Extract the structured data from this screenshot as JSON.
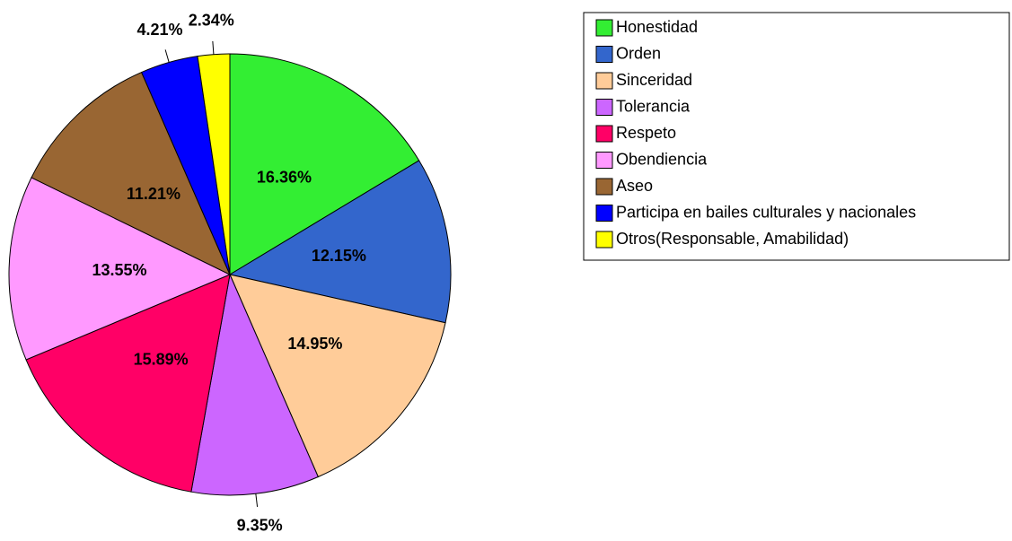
{
  "chart_data": {
    "type": "pie",
    "categories": [
      "Honestidad",
      "Orden",
      "Sinceridad",
      "Tolerancia",
      "Respeto",
      "Obendiencia",
      "Aseo",
      "Participa en bailes culturales y nacionales",
      "Otros(Responsable, Amabilidad)"
    ],
    "values": [
      16.36,
      12.15,
      14.95,
      9.35,
      15.89,
      13.55,
      11.21,
      4.21,
      2.34
    ],
    "value_labels": [
      "16.36%",
      "12.15%",
      "14.95%",
      "9.35%",
      "15.89%",
      "13.55%",
      "11.21%",
      "4.21%",
      "2.34%"
    ],
    "colors": [
      "#33ee33",
      "#3366cc",
      "#ffcc99",
      "#cc66ff",
      "#ff0066",
      "#ff99ff",
      "#996633",
      "#0000ff",
      "#ffff00"
    ],
    "legend": "upper right"
  }
}
